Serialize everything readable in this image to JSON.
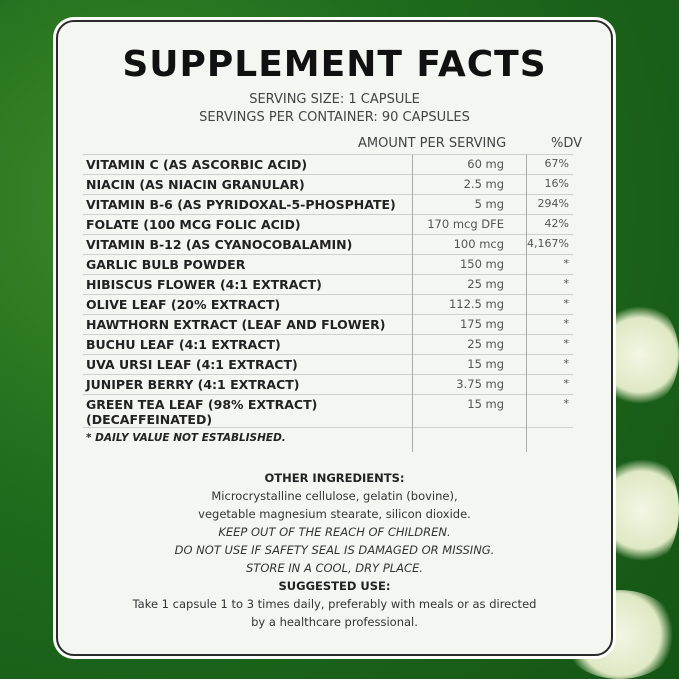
{
  "title": "SUPPLEMENT FACTS",
  "serving_size": "SERVING SIZE: 1 CAPSULE",
  "servings_per_container": "SERVINGS PER CONTAINER: 90 CAPSULES",
  "columns": {
    "amount": "AMOUNT PER SERVING",
    "dv": "%DV"
  },
  "rows": [
    {
      "name": "VITAMIN C (AS ASCORBIC ACID)",
      "amount": "60 mg",
      "dv": "67%"
    },
    {
      "name": "NIACIN (AS NIACIN GRANULAR)",
      "amount": "2.5 mg",
      "dv": "16%"
    },
    {
      "name": "VITAMIN B-6 (AS PYRIDOXAL-5-PHOSPHATE)",
      "amount": "5 mg",
      "dv": "294%"
    },
    {
      "name": "FOLATE (100 MCG FOLIC ACID)",
      "amount": "170 mcg DFE",
      "dv": "42%"
    },
    {
      "name": "VITAMIN B-12 (AS CYANOCOBALAMIN)",
      "amount": "100 mcg",
      "dv": "4,167%"
    },
    {
      "name": "GARLIC BULB POWDER",
      "amount": "150 mg",
      "dv": "*"
    },
    {
      "name": "HIBISCUS FLOWER (4:1 EXTRACT)",
      "amount": "25 mg",
      "dv": "*"
    },
    {
      "name": "OLIVE LEAF (20% EXTRACT)",
      "amount": "112.5 mg",
      "dv": "*"
    },
    {
      "name": "HAWTHORN EXTRACT (LEAF AND FLOWER)",
      "amount": "175 mg",
      "dv": "*"
    },
    {
      "name": "BUCHU LEAF (4:1 EXTRACT)",
      "amount": "25 mg",
      "dv": "*"
    },
    {
      "name": "UVA URSI LEAF (4:1 EXTRACT)",
      "amount": "15 mg",
      "dv": "*"
    },
    {
      "name": "JUNIPER BERRY (4:1 EXTRACT)",
      "amount": "3.75 mg",
      "dv": "*"
    },
    {
      "name": "GREEN TEA LEAF (98% EXTRACT) (DECAFFEINATED)",
      "amount": "15 mg",
      "dv": "*"
    }
  ],
  "footnote": "* DAILY VALUE NOT ESTABLISHED.",
  "other_heading": "OTHER INGREDIENTS:",
  "other_lines": [
    "Microcrystalline cellulose, gelatin (bovine),",
    "vegetable magnesium stearate, silicon dioxide."
  ],
  "warnings": [
    "KEEP OUT OF THE REACH OF CHILDREN.",
    "DO NOT USE IF SAFETY SEAL IS DAMAGED OR MISSING.",
    "STORE IN A COOL, DRY PLACE."
  ],
  "use_heading": "SUGGESTED USE:",
  "use_lines": [
    "Take 1 capsule 1 to 3 times daily, preferably with meals or as directed",
    "by a healthcare professional."
  ]
}
